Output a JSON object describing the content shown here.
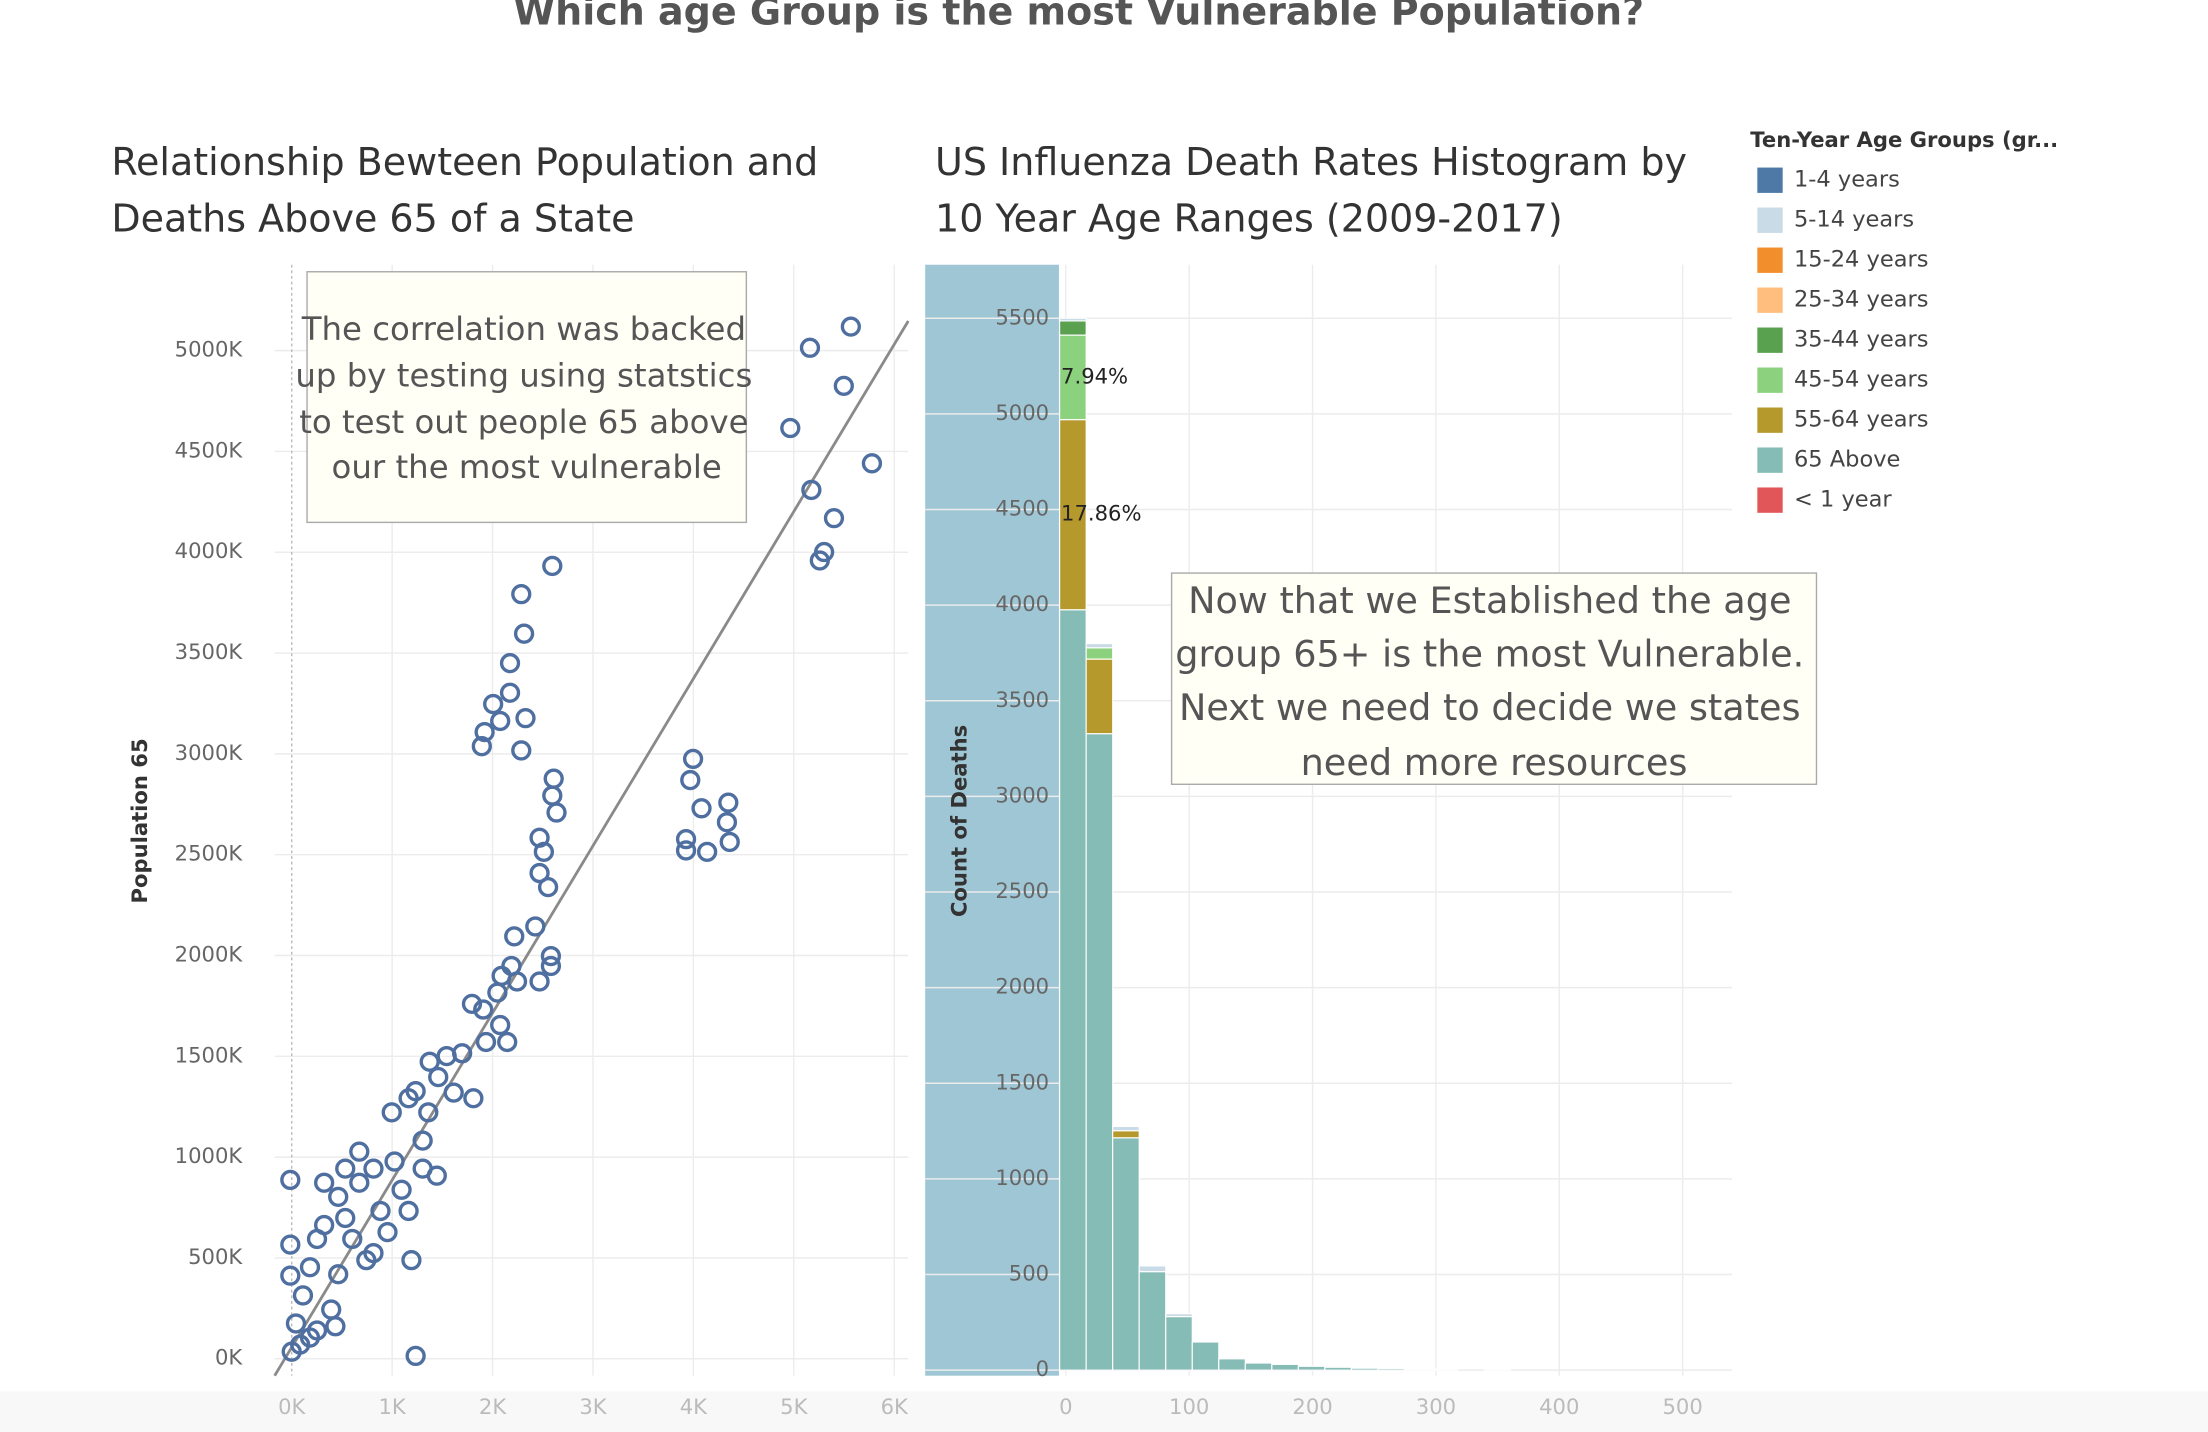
{
  "title": "Which age Group is the most Vulnerable Population?",
  "chart_data": [
    {
      "type": "scatter",
      "title": [
        "Relationship Bewteen Population and",
        "Deaths Above 65 of a State"
      ],
      "y_label": "Population 65",
      "annotation": [
        "The correlation was backed",
        "up by testing using statstics",
        "to test out people 65 above",
        "our the most vulnerable"
      ],
      "color": "#4e6fa0",
      "xlim": [
        -170,
        6140
      ],
      "xticks": [
        {
          "value": 0,
          "label": "0K"
        },
        {
          "value": 1000,
          "label": "1K"
        },
        {
          "value": 2000,
          "label": "2K"
        },
        {
          "value": 3000,
          "label": "3K"
        },
        {
          "value": 4000,
          "label": "4K"
        },
        {
          "value": 5000,
          "label": "5K"
        },
        {
          "value": 6000,
          "label": "6K"
        }
      ],
      "ylim": [
        -84000,
        5426000
      ],
      "yticks": [
        {
          "value": 0,
          "label": "0K"
        },
        {
          "value": 500000,
          "label": "500K"
        },
        {
          "value": 1000000,
          "label": "1000K"
        },
        {
          "value": 1500000,
          "label": "1500K"
        },
        {
          "value": 2000000,
          "label": "2000K"
        },
        {
          "value": 2500000,
          "label": "2500K"
        },
        {
          "value": 3000000,
          "label": "3000K"
        },
        {
          "value": 3500000,
          "label": "3500K"
        },
        {
          "value": 4000000,
          "label": "4000K"
        },
        {
          "value": 4500000,
          "label": "4500K"
        },
        {
          "value": 5000000,
          "label": "5000K"
        }
      ],
      "grid": true,
      "trend_line": {
        "x": [
          -170,
          6140
        ],
        "y": [
          -84000,
          5147000
        ]
      },
      "x": [
        5568,
        5161,
        5498,
        4965,
        5778,
        5175,
        5400,
        5302,
        5259,
        2595,
        2286,
        2314,
        2174,
        2174,
        2006,
        2328,
        2076,
        1921,
        1893,
        2286,
        2609,
        2595,
        2637,
        2468,
        2511,
        2468,
        2553,
        3997,
        3969,
        4081,
        4348,
        4334,
        3927,
        3927,
        4137,
        4362,
        2426,
        2216,
        2581,
        2188,
        2581,
        2090,
        2468,
        2244,
        1795,
        1907,
        2048,
        2076,
        1935,
        2146,
        1374,
        1543,
        1697,
        1809,
        1613,
        1459,
        1234,
        1164,
        1360,
        996,
        673,
        814,
        533,
        673,
        463,
        323,
        252,
        182,
        112,
        42,
        0,
        323,
        884,
        1164,
        1094,
        1304,
        1445,
        743,
        463,
        603,
        393,
        252,
        84,
        -14,
        -14,
        -14,
        1234,
        182,
        1024,
        1304,
        533,
        954,
        814,
        1192,
        435
      ],
      "y": [
        5119000,
        5014000,
        4825000,
        4616000,
        4441000,
        4309000,
        4169000,
        4001000,
        3959000,
        3932000,
        3792000,
        3596000,
        3450000,
        3303000,
        3247000,
        3177000,
        3163000,
        3108000,
        3038000,
        3017000,
        2877000,
        2793000,
        2709000,
        2584000,
        2514000,
        2409000,
        2339000,
        2975000,
        2870000,
        2730000,
        2758000,
        2661000,
        2577000,
        2521000,
        2514000,
        2563000,
        2144000,
        2095000,
        1997000,
        1948000,
        1948000,
        1899000,
        1871000,
        1871000,
        1760000,
        1732000,
        1816000,
        1655000,
        1571000,
        1571000,
        1473000,
        1501000,
        1515000,
        1292000,
        1320000,
        1397000,
        1327000,
        1292000,
        1222000,
        1222000,
        1027000,
        943000,
        943000,
        873000,
        803000,
        663000,
        594000,
        454000,
        314000,
        175000,
        35000,
        873000,
        733000,
        733000,
        838000,
        943000,
        908000,
        489000,
        419000,
        594000,
        244000,
        140000,
        70000,
        887000,
        566000,
        412000,
        14000,
        105000,
        978000,
        1082000,
        698000,
        628000,
        524000,
        489000,
        161000
      ]
    },
    {
      "type": "histogram",
      "title": [
        "US Influenza Death Rates Histogram by",
        "10 Year Age Ranges (2009-2017)"
      ],
      "y_label": "Count of Deaths",
      "annotation": [
        "Now that we Established the age",
        "group 65+ is the most Vulnerable.",
        "Next we need to decide we states",
        "need more resources"
      ],
      "legend": {
        "title": "Ten-Year Age Groups (gr...",
        "position": "right"
      },
      "xlim": [
        -114,
        540
      ],
      "xticks": [
        0,
        100,
        200,
        300,
        400,
        500
      ],
      "ylim": [
        -29,
        5780
      ],
      "yticks": [
        0,
        500,
        1000,
        1500,
        2000,
        2500,
        3000,
        3500,
        4000,
        4500,
        5000,
        5500
      ],
      "grid": true,
      "bins": [
        -5,
        16.5,
        38,
        59.5,
        81,
        102.5,
        124,
        145.5,
        167,
        188.5,
        210,
        231.5,
        253,
        274.5,
        296,
        317.5,
        339,
        360.5,
        382
      ],
      "series": [
        {
          "name": "1-4 years",
          "color": "#4e79a7",
          "values": [
            0,
            0,
            0,
            0,
            0,
            0,
            0,
            0,
            0,
            0,
            0,
            0,
            0,
            0,
            0,
            0,
            0,
            0
          ]
        },
        {
          "name": "5-14 years",
          "color": "#c9dbe6",
          "values": [
            14,
            22,
            22,
            30,
            15,
            0,
            0,
            0,
            0,
            0,
            0,
            0,
            0,
            0,
            0,
            0,
            0,
            0
          ]
        },
        {
          "name": "15-24 years",
          "color": "#f28e2b",
          "values": [
            0,
            0,
            0,
            0,
            0,
            0,
            0,
            0,
            0,
            0,
            0,
            0,
            0,
            0,
            0,
            0,
            0,
            0
          ]
        },
        {
          "name": "25-34 years",
          "color": "#ffbe7d",
          "values": [
            0,
            0,
            0,
            0,
            0,
            0,
            0,
            0,
            0,
            0,
            0,
            0,
            0,
            0,
            0,
            0,
            0,
            0
          ]
        },
        {
          "name": "35-44 years",
          "color": "#59a14f",
          "values": [
            74,
            0,
            0,
            0,
            0,
            0,
            0,
            0,
            0,
            0,
            0,
            0,
            0,
            0,
            0,
            0,
            0,
            0
          ]
        },
        {
          "name": "45-54 years",
          "color": "#8cd17d",
          "values": [
            442,
            59,
            0,
            0,
            0,
            0,
            0,
            0,
            0,
            0,
            0,
            0,
            0,
            0,
            0,
            0,
            0,
            0
          ],
          "share_labels": [
            "7.94%",
            null,
            null,
            null,
            null,
            null,
            null,
            null,
            null,
            null,
            null,
            null,
            null,
            null,
            null,
            null,
            null,
            null
          ]
        },
        {
          "name": "55-64 years",
          "color": "#b6992d",
          "values": [
            994,
            390,
            37,
            0,
            0,
            0,
            0,
            0,
            0,
            0,
            0,
            0,
            0,
            0,
            0,
            0,
            0,
            0
          ],
          "share_labels": [
            "17.86%",
            null,
            null,
            null,
            null,
            null,
            null,
            null,
            null,
            null,
            null,
            null,
            null,
            null,
            null,
            null,
            null,
            null
          ]
        },
        {
          "name": "65 Above",
          "color": "#86bcb6",
          "values": [
            3976,
            3328,
            1215,
            515,
            280,
            147,
            59,
            37,
            30,
            20,
            15,
            10,
            8,
            3,
            5,
            0,
            4,
            0
          ]
        },
        {
          "name": "< 1 year",
          "color": "#e15759",
          "values": [
            0,
            0,
            0,
            0,
            0,
            0,
            0,
            0,
            0,
            0,
            0,
            0,
            0,
            0,
            0,
            0,
            0,
            0
          ]
        }
      ]
    }
  ]
}
